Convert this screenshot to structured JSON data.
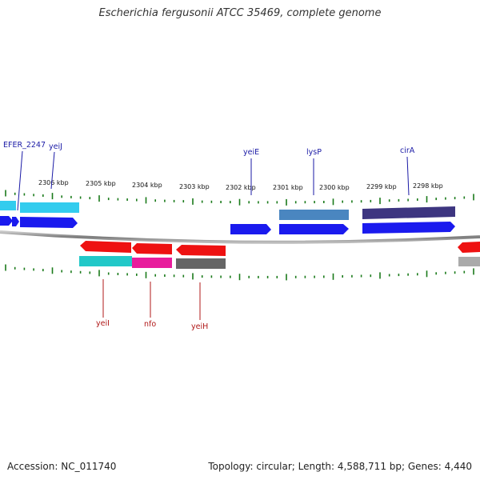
{
  "title": "Escherichia fergusonii ATCC 35469, complete genome",
  "footer": {
    "accession": "Accession: NC_011740",
    "summary": "Topology: circular; Length: 4,588,711 bp; Genes: 4,440"
  },
  "scale_labels": [
    "2306 kbp",
    "2305 kbp",
    "2304 kbp",
    "2303 kbp",
    "2302 kbp",
    "2301 kbp",
    "2300 kbp",
    "2299 kbp",
    "2298 kbp"
  ],
  "forward_gene_labels": [
    "EFER_2247",
    "yeiJ",
    "yeiE",
    "lysP",
    "cirA"
  ],
  "reverse_gene_labels": [
    "yeiI",
    "nfo",
    "yeiH"
  ],
  "colors": {
    "forward_strand": "#1a1aee",
    "reverse_strand": "#ee1111",
    "backbone": "#8a8a8a",
    "tick": "#1a7a1a",
    "cyan": "#33ccee",
    "steelblue": "#4a86c0",
    "darkslate": "#3d3580",
    "teal": "#22c8c8",
    "magenta": "#e81c9c",
    "gray": "#666666",
    "forward_label": "#1a1aa6",
    "reverse_label": "#b01818"
  }
}
